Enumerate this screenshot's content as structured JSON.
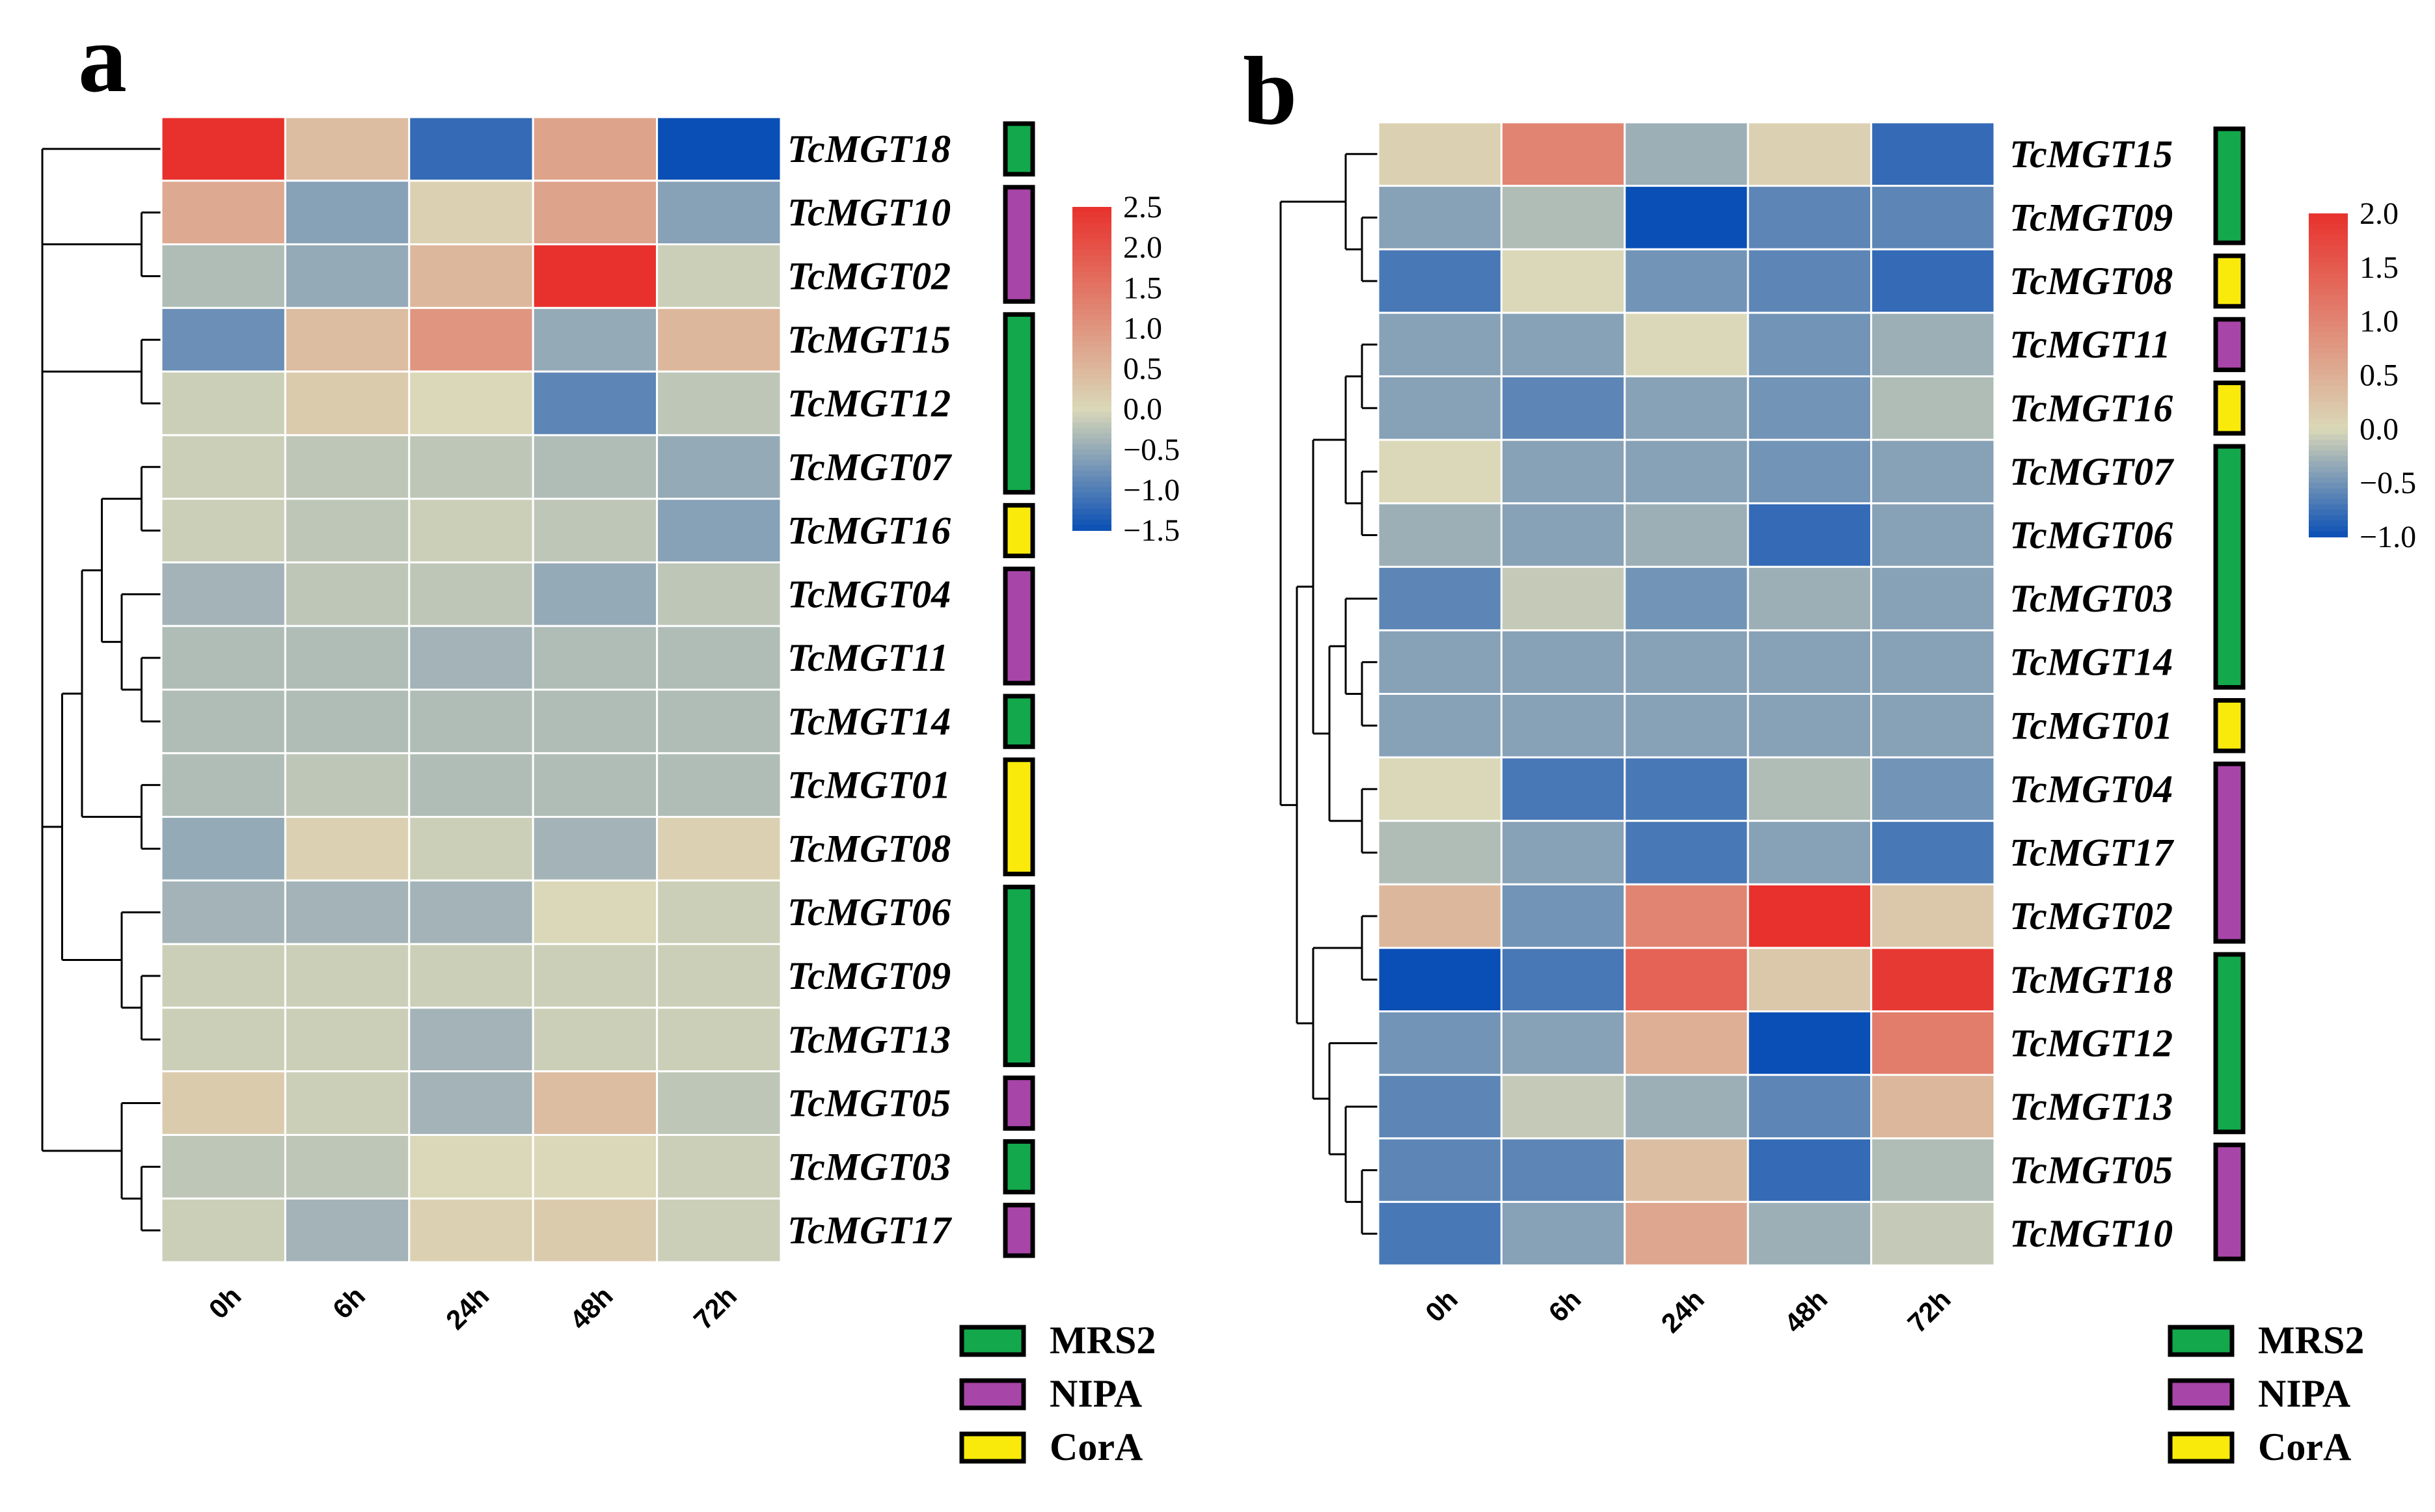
{
  "colors": {
    "MRS2": "#12a84b",
    "NIPA": "#a845a8",
    "CorA": "#f9ea0b",
    "low": "#0a4fb5",
    "mid": "#dad8b8",
    "high": "#e8312c"
  },
  "legend": [
    {
      "family": "MRS2",
      "label": "MRS2"
    },
    {
      "family": "NIPA",
      "label": "NIPA"
    },
    {
      "family": "CorA",
      "label": "CorA"
    }
  ],
  "chart_data": [
    {
      "type": "heatmap",
      "panel": "a",
      "columns": [
        "0h",
        "6h",
        "24h",
        "48h",
        "72h"
      ],
      "rows": [
        "TcMGT18",
        "TcMGT10",
        "TcMGT02",
        "TcMGT15",
        "TcMGT12",
        "TcMGT07",
        "TcMGT16",
        "TcMGT04",
        "TcMGT11",
        "TcMGT14",
        "TcMGT01",
        "TcMGT08",
        "TcMGT06",
        "TcMGT09",
        "TcMGT13",
        "TcMGT05",
        "TcMGT03",
        "TcMGT17"
      ],
      "values": [
        [
          2.5,
          0.4,
          -1.2,
          0.8,
          -1.5
        ],
        [
          0.7,
          -0.6,
          0.1,
          0.8,
          -0.6
        ],
        [
          -0.3,
          -0.5,
          0.5,
          2.5,
          -0.1
        ],
        [
          -0.8,
          0.4,
          1.0,
          -0.5,
          0.5
        ],
        [
          -0.1,
          0.2,
          0.0,
          -0.9,
          -0.2
        ],
        [
          -0.1,
          -0.2,
          -0.2,
          -0.3,
          -0.5
        ],
        [
          -0.1,
          -0.2,
          -0.1,
          -0.2,
          -0.6
        ],
        [
          -0.4,
          -0.2,
          -0.2,
          -0.5,
          -0.2
        ],
        [
          -0.3,
          -0.3,
          -0.4,
          -0.3,
          -0.3
        ],
        [
          -0.3,
          -0.3,
          -0.3,
          -0.3,
          -0.3
        ],
        [
          -0.3,
          -0.2,
          -0.3,
          -0.3,
          -0.3
        ],
        [
          -0.5,
          0.1,
          -0.1,
          -0.4,
          0.1
        ],
        [
          -0.4,
          -0.4,
          -0.4,
          0.0,
          -0.1
        ],
        [
          -0.1,
          -0.1,
          -0.1,
          -0.1,
          -0.1
        ],
        [
          -0.1,
          -0.1,
          -0.4,
          -0.1,
          -0.1
        ],
        [
          0.2,
          -0.1,
          -0.4,
          0.4,
          -0.2
        ],
        [
          -0.2,
          -0.2,
          0.0,
          0.0,
          -0.1
        ],
        [
          -0.1,
          -0.4,
          0.1,
          0.2,
          -0.1
        ]
      ],
      "row_families": {
        "TcMGT18": "MRS2",
        "TcMGT10": "NIPA",
        "TcMGT02": "NIPA",
        "TcMGT15": "MRS2",
        "TcMGT12": "MRS2",
        "TcMGT07": "MRS2",
        "TcMGT16": "CorA",
        "TcMGT04": "NIPA",
        "TcMGT11": "NIPA",
        "TcMGT14": "MRS2",
        "TcMGT01": "CorA",
        "TcMGT08": "CorA",
        "TcMGT06": "MRS2",
        "TcMGT09": "MRS2",
        "TcMGT13": "MRS2",
        "TcMGT05": "NIPA",
        "TcMGT03": "MRS2",
        "TcMGT17": "NIPA"
      },
      "family_bars": [
        {
          "family": "MRS2",
          "rows": [
            0,
            0
          ]
        },
        {
          "family": "NIPA",
          "rows": [
            1,
            2
          ]
        },
        {
          "family": "MRS2",
          "rows": [
            3,
            5
          ]
        },
        {
          "family": "CorA",
          "rows": [
            6,
            6
          ]
        },
        {
          "family": "NIPA",
          "rows": [
            7,
            8
          ]
        },
        {
          "family": "MRS2",
          "rows": [
            9,
            9
          ]
        },
        {
          "family": "CorA",
          "rows": [
            10,
            11
          ]
        },
        {
          "family": "MRS2",
          "rows": [
            12,
            14
          ]
        },
        {
          "family": "NIPA",
          "rows": [
            15,
            15
          ]
        },
        {
          "family": "MRS2",
          "rows": [
            16,
            16
          ]
        },
        {
          "family": "NIPA",
          "rows": [
            17,
            17
          ]
        }
      ],
      "colorbar": {
        "min": -1.5,
        "max": 2.5,
        "ticks": [
          "2.5",
          "2.0",
          "1.5",
          "1.0",
          "0.5",
          "0.0",
          "−0.5",
          "−1.0",
          "−1.5"
        ]
      },
      "dendrogram": "0,(1,2),(3,4),((((5,6),(7,(8,9))),(10,11)),(12,(13,14))),(15,(16,17))"
    },
    {
      "type": "heatmap",
      "panel": "b",
      "columns": [
        "0h",
        "6h",
        "24h",
        "48h",
        "72h"
      ],
      "rows": [
        "TcMGT15",
        "TcMGT09",
        "TcMGT08",
        "TcMGT11",
        "TcMGT16",
        "TcMGT07",
        "TcMGT06",
        "TcMGT03",
        "TcMGT14",
        "TcMGT01",
        "TcMGT04",
        "TcMGT17",
        "TcMGT02",
        "TcMGT18",
        "TcMGT12",
        "TcMGT13",
        "TcMGT05",
        "TcMGT10"
      ],
      "values": [
        [
          0.1,
          1.0,
          -0.3,
          0.1,
          -0.8
        ],
        [
          -0.4,
          -0.2,
          -1.0,
          -0.6,
          -0.6
        ],
        [
          -0.7,
          0.0,
          -0.5,
          -0.6,
          -0.8
        ],
        [
          -0.4,
          -0.4,
          0.0,
          -0.5,
          -0.3
        ],
        [
          -0.4,
          -0.6,
          -0.4,
          -0.5,
          -0.2
        ],
        [
          0.0,
          -0.4,
          -0.4,
          -0.5,
          -0.4
        ],
        [
          -0.3,
          -0.4,
          -0.3,
          -0.8,
          -0.4
        ],
        [
          -0.6,
          -0.1,
          -0.5,
          -0.3,
          -0.4
        ],
        [
          -0.4,
          -0.4,
          -0.4,
          -0.4,
          -0.4
        ],
        [
          -0.4,
          -0.4,
          -0.4,
          -0.4,
          -0.4
        ],
        [
          0.0,
          -0.7,
          -0.7,
          -0.2,
          -0.5
        ],
        [
          -0.2,
          -0.4,
          -0.7,
          -0.4,
          -0.7
        ],
        [
          0.4,
          -0.5,
          1.0,
          2.0,
          0.2
        ],
        [
          -1.0,
          -0.7,
          1.4,
          0.2,
          1.9
        ],
        [
          -0.5,
          -0.4,
          0.5,
          -1.1,
          1.1
        ],
        [
          -0.6,
          -0.1,
          -0.3,
          -0.6,
          0.4
        ],
        [
          -0.6,
          -0.6,
          0.3,
          -0.8,
          -0.2
        ],
        [
          -0.7,
          -0.4,
          0.6,
          -0.3,
          -0.1
        ]
      ],
      "row_families": {
        "TcMGT15": "MRS2",
        "TcMGT09": "MRS2",
        "TcMGT08": "CorA",
        "TcMGT11": "NIPA",
        "TcMGT16": "CorA",
        "TcMGT07": "MRS2",
        "TcMGT06": "MRS2",
        "TcMGT03": "MRS2",
        "TcMGT14": "MRS2",
        "TcMGT01": "CorA",
        "TcMGT04": "NIPA",
        "TcMGT17": "NIPA",
        "TcMGT02": "NIPA",
        "TcMGT18": "MRS2",
        "TcMGT12": "MRS2",
        "TcMGT13": "MRS2",
        "TcMGT05": "NIPA",
        "TcMGT10": "NIPA"
      },
      "family_bars": [
        {
          "family": "MRS2",
          "rows": [
            0,
            1
          ]
        },
        {
          "family": "CorA",
          "rows": [
            2,
            2
          ]
        },
        {
          "family": "NIPA",
          "rows": [
            3,
            3
          ]
        },
        {
          "family": "CorA",
          "rows": [
            4,
            4
          ]
        },
        {
          "family": "MRS2",
          "rows": [
            5,
            8
          ]
        },
        {
          "family": "CorA",
          "rows": [
            9,
            9
          ]
        },
        {
          "family": "NIPA",
          "rows": [
            10,
            12
          ]
        },
        {
          "family": "MRS2",
          "rows": [
            13,
            15
          ]
        },
        {
          "family": "NIPA",
          "rows": [
            16,
            17
          ]
        }
      ],
      "colorbar": {
        "min": -1.0,
        "max": 2.0,
        "ticks": [
          "2.0",
          "1.5",
          "1.0",
          "0.5",
          "0.0",
          "−0.5",
          "−1.0"
        ]
      },
      "dendrogram": "(0,(1,2)),((((3,4),(5,6)),((7,(8,9)),(10,11))),((12,13),(14,(15,(16,17)))))"
    }
  ]
}
